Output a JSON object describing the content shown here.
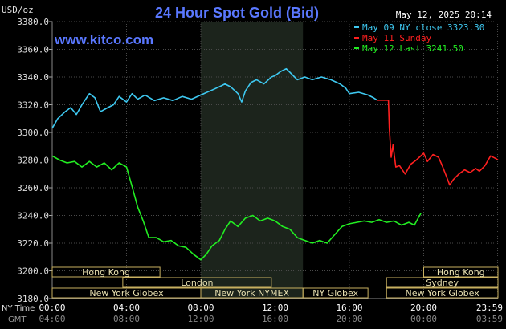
{
  "chart_data": {
    "type": "line",
    "title": "24 Hour Spot Gold (Bid)",
    "timestamp": "May 12, 2025 20:14",
    "watermark": "www.kitco.com",
    "y_unit": "USD/oz",
    "ylim": [
      3180,
      3380
    ],
    "y_ticks": [
      "3380.0",
      "3360.0",
      "3340.0",
      "3320.0",
      "3300.0",
      "3280.0",
      "3260.0",
      "3240.0",
      "3220.0",
      "3200.0",
      "3180.0"
    ],
    "x_range_hours": [
      0,
      24
    ],
    "ny_time_label": "NY Time",
    "gmt_label": "GMT",
    "ny_ticks": [
      "00:00",
      "04:00",
      "08:00",
      "12:00",
      "16:00",
      "20:00",
      "23:59"
    ],
    "gmt_ticks": [
      "04:00",
      "08:00",
      "12:00",
      "16:00",
      "20:00",
      "00:00",
      "03:59"
    ],
    "legend": [
      {
        "text": "May 09 NY close 3323.30",
        "color": "#3ec8f0"
      },
      {
        "text": "May 11 Sunday",
        "color": "#ff2020"
      },
      {
        "text": "May 12 Last 3241.50",
        "color": "#22ee22"
      }
    ],
    "series": [
      {
        "name": "May 09 NY close 3323.30",
        "color": "#3ec8f0",
        "points": [
          [
            0,
            3303
          ],
          [
            0.3,
            3310
          ],
          [
            0.7,
            3315
          ],
          [
            1.0,
            3318
          ],
          [
            1.3,
            3313
          ],
          [
            1.6,
            3320
          ],
          [
            2.0,
            3328
          ],
          [
            2.3,
            3325
          ],
          [
            2.6,
            3315
          ],
          [
            3.0,
            3318
          ],
          [
            3.3,
            3320
          ],
          [
            3.6,
            3326
          ],
          [
            4.0,
            3322
          ],
          [
            4.3,
            3328
          ],
          [
            4.6,
            3324
          ],
          [
            5.0,
            3327
          ],
          [
            5.5,
            3323
          ],
          [
            6.0,
            3325
          ],
          [
            6.5,
            3323
          ],
          [
            7.0,
            3326
          ],
          [
            7.5,
            3324
          ],
          [
            8.0,
            3327
          ],
          [
            8.5,
            3330
          ],
          [
            9.0,
            3333
          ],
          [
            9.3,
            3335
          ],
          [
            9.6,
            3333
          ],
          [
            10.0,
            3328
          ],
          [
            10.2,
            3322
          ],
          [
            10.4,
            3330
          ],
          [
            10.7,
            3336
          ],
          [
            11.0,
            3338
          ],
          [
            11.4,
            3335
          ],
          [
            11.8,
            3340
          ],
          [
            12.0,
            3341
          ],
          [
            12.3,
            3344
          ],
          [
            12.6,
            3346
          ],
          [
            12.9,
            3342
          ],
          [
            13.2,
            3338
          ],
          [
            13.6,
            3340
          ],
          [
            14.0,
            3338
          ],
          [
            14.5,
            3340
          ],
          [
            15.0,
            3338
          ],
          [
            15.5,
            3335
          ],
          [
            15.8,
            3332
          ],
          [
            16.0,
            3328
          ],
          [
            16.5,
            3329
          ],
          [
            17.0,
            3327
          ],
          [
            17.3,
            3325
          ],
          [
            17.5,
            3323.3
          ]
        ]
      },
      {
        "name": "May 11 Sunday",
        "color": "#ff2020",
        "points": [
          [
            17.5,
            3323.3
          ],
          [
            18.1,
            3323.3
          ],
          [
            18.15,
            3303
          ],
          [
            18.25,
            3282
          ],
          [
            18.35,
            3291
          ],
          [
            18.5,
            3275
          ],
          [
            18.7,
            3276
          ],
          [
            19.0,
            3270
          ],
          [
            19.3,
            3277
          ],
          [
            19.6,
            3280
          ],
          [
            20.0,
            3285
          ],
          [
            20.2,
            3279
          ],
          [
            20.5,
            3284
          ],
          [
            20.8,
            3282
          ],
          [
            21.0,
            3276
          ],
          [
            21.2,
            3269
          ],
          [
            21.4,
            3262
          ],
          [
            21.6,
            3266
          ],
          [
            21.9,
            3270
          ],
          [
            22.2,
            3273
          ],
          [
            22.5,
            3271
          ],
          [
            22.8,
            3274
          ],
          [
            23.0,
            3272
          ],
          [
            23.3,
            3276
          ],
          [
            23.6,
            3283
          ],
          [
            23.9,
            3281
          ],
          [
            24.0,
            3280
          ]
        ]
      },
      {
        "name": "May 12 Last 3241.50",
        "color": "#22ee22",
        "points": [
          [
            0,
            3283
          ],
          [
            0.4,
            3280
          ],
          [
            0.8,
            3278
          ],
          [
            1.2,
            3279
          ],
          [
            1.6,
            3275
          ],
          [
            2.0,
            3279
          ],
          [
            2.4,
            3275
          ],
          [
            2.8,
            3278
          ],
          [
            3.2,
            3273
          ],
          [
            3.6,
            3278
          ],
          [
            4.0,
            3275
          ],
          [
            4.3,
            3261
          ],
          [
            4.6,
            3246
          ],
          [
            4.9,
            3236
          ],
          [
            5.2,
            3224
          ],
          [
            5.6,
            3224
          ],
          [
            6.0,
            3221
          ],
          [
            6.4,
            3222
          ],
          [
            6.8,
            3218
          ],
          [
            7.2,
            3217
          ],
          [
            7.6,
            3212
          ],
          [
            8.0,
            3208
          ],
          [
            8.3,
            3212
          ],
          [
            8.6,
            3218
          ],
          [
            9.0,
            3222
          ],
          [
            9.3,
            3230
          ],
          [
            9.6,
            3236
          ],
          [
            10.0,
            3232
          ],
          [
            10.4,
            3238
          ],
          [
            10.8,
            3240
          ],
          [
            11.2,
            3236
          ],
          [
            11.6,
            3238
          ],
          [
            12.0,
            3236
          ],
          [
            12.4,
            3232
          ],
          [
            12.8,
            3230
          ],
          [
            13.2,
            3224
          ],
          [
            13.6,
            3222
          ],
          [
            14.0,
            3220
          ],
          [
            14.4,
            3222
          ],
          [
            14.8,
            3220
          ],
          [
            15.2,
            3226
          ],
          [
            15.6,
            3232
          ],
          [
            16.0,
            3234
          ],
          [
            16.4,
            3235
          ],
          [
            16.8,
            3236
          ],
          [
            17.2,
            3235
          ],
          [
            17.6,
            3237
          ],
          [
            18.0,
            3235
          ],
          [
            18.4,
            3236
          ],
          [
            18.8,
            3233
          ],
          [
            19.2,
            3235
          ],
          [
            19.5,
            3233
          ],
          [
            19.7,
            3238
          ],
          [
            19.85,
            3241.5
          ]
        ]
      }
    ],
    "sessions": [
      {
        "label": "Hong Kong",
        "start": 0,
        "end": 5.8,
        "row": 0
      },
      {
        "label": "London",
        "start": 3.8,
        "end": 11.8,
        "row": 1
      },
      {
        "label": "New York Globex",
        "start": 0,
        "end": 8.0,
        "row": 2
      },
      {
        "label": "New York NYMEX",
        "start": 8.0,
        "end": 13.5,
        "row": 2
      },
      {
        "label": "NY Globex",
        "start": 13.5,
        "end": 17.0,
        "row": 2
      },
      {
        "label": "Hong Kong",
        "start": 20.0,
        "end": 24.0,
        "row": 0
      },
      {
        "label": "Sydney",
        "start": 18.0,
        "end": 24.0,
        "row": 1
      },
      {
        "label": "New York Globex",
        "start": 18.0,
        "end": 24.0,
        "row": 2
      }
    ],
    "shaded_band": {
      "start": 8.0,
      "end": 13.5
    }
  }
}
